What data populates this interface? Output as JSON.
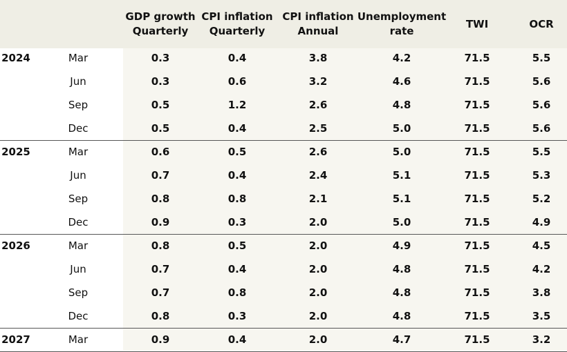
{
  "table": {
    "columns": [
      {
        "lines": [
          "GDP growth",
          "Quarterly"
        ]
      },
      {
        "lines": [
          "CPI inflation",
          "Quarterly"
        ]
      },
      {
        "lines": [
          "CPI inflation",
          "Annual"
        ]
      },
      {
        "lines": [
          "Unemployment",
          "rate"
        ]
      },
      {
        "lines": [
          "TWI"
        ]
      },
      {
        "lines": [
          "OCR"
        ]
      }
    ],
    "groups": [
      {
        "year": "2024",
        "rows": [
          {
            "quarter": "Mar",
            "values": [
              "0.3",
              "0.4",
              "3.8",
              "4.2",
              "71.5",
              "5.5"
            ]
          },
          {
            "quarter": "Jun",
            "values": [
              "0.3",
              "0.6",
              "3.2",
              "4.6",
              "71.5",
              "5.6"
            ]
          },
          {
            "quarter": "Sep",
            "values": [
              "0.5",
              "1.2",
              "2.6",
              "4.8",
              "71.5",
              "5.6"
            ]
          },
          {
            "quarter": "Dec",
            "values": [
              "0.5",
              "0.4",
              "2.5",
              "5.0",
              "71.5",
              "5.6"
            ]
          }
        ]
      },
      {
        "year": "2025",
        "rows": [
          {
            "quarter": "Mar",
            "values": [
              "0.6",
              "0.5",
              "2.6",
              "5.0",
              "71.5",
              "5.5"
            ]
          },
          {
            "quarter": "Jun",
            "values": [
              "0.7",
              "0.4",
              "2.4",
              "5.1",
              "71.5",
              "5.3"
            ]
          },
          {
            "quarter": "Sep",
            "values": [
              "0.8",
              "0.8",
              "2.1",
              "5.1",
              "71.5",
              "5.2"
            ]
          },
          {
            "quarter": "Dec",
            "values": [
              "0.9",
              "0.3",
              "2.0",
              "5.0",
              "71.5",
              "4.9"
            ]
          }
        ]
      },
      {
        "year": "2026",
        "rows": [
          {
            "quarter": "Mar",
            "values": [
              "0.8",
              "0.5",
              "2.0",
              "4.9",
              "71.5",
              "4.5"
            ]
          },
          {
            "quarter": "Jun",
            "values": [
              "0.7",
              "0.4",
              "2.0",
              "4.8",
              "71.5",
              "4.2"
            ]
          },
          {
            "quarter": "Sep",
            "values": [
              "0.7",
              "0.8",
              "2.0",
              "4.8",
              "71.5",
              "3.8"
            ]
          },
          {
            "quarter": "Dec",
            "values": [
              "0.8",
              "0.3",
              "2.0",
              "4.8",
              "71.5",
              "3.5"
            ]
          }
        ]
      },
      {
        "year": "2027",
        "rows": [
          {
            "quarter": "Mar",
            "values": [
              "0.9",
              "0.4",
              "2.0",
              "4.7",
              "71.5",
              "3.2"
            ]
          }
        ]
      }
    ]
  }
}
